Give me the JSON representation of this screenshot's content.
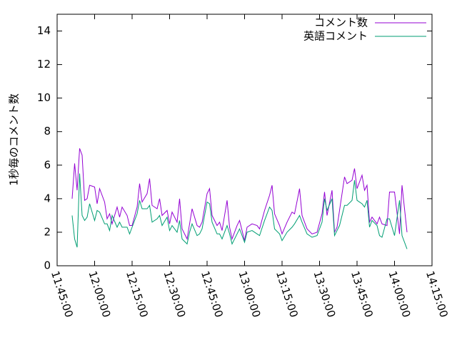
{
  "chart_data": {
    "type": "line",
    "y_label": "1秒毎のコメント数",
    "x": [
      "11:51:00",
      "11:52:00",
      "11:53:00",
      "11:54:00",
      "11:55:00",
      "11:56:00",
      "11:57:00",
      "11:58:00",
      "12:00:00",
      "12:01:00",
      "12:02:00",
      "12:04:00",
      "12:05:00",
      "12:06:00",
      "12:07:00",
      "12:09:00",
      "12:10:00",
      "12:11:00",
      "12:13:00",
      "12:14:00",
      "12:15:00",
      "12:17:00",
      "12:18:00",
      "12:19:00",
      "12:21:00",
      "12:22:00",
      "12:23:00",
      "12:25:00",
      "12:26:00",
      "12:27:00",
      "12:29:00",
      "12:30:00",
      "12:31:00",
      "12:33:00",
      "12:34:00",
      "12:35:00",
      "12:37:00",
      "12:38:00",
      "12:39:00",
      "12:41:00",
      "12:42:00",
      "12:43:00",
      "12:45:00",
      "12:46:00",
      "12:47:00",
      "12:49:00",
      "12:50:00",
      "12:51:00",
      "12:53:00",
      "12:54:00",
      "12:55:00",
      "12:57:00",
      "12:58:00",
      "13:00:00",
      "13:01:00",
      "13:03:00",
      "13:05:00",
      "13:06:00",
      "13:08:00",
      "13:10:00",
      "13:11:00",
      "13:12:00",
      "13:14:00",
      "13:15:00",
      "13:17:00",
      "13:19:00",
      "13:20:00",
      "13:22:00",
      "13:23:00",
      "13:25:00",
      "13:27:00",
      "13:29:00",
      "13:31:00",
      "13:32:00",
      "13:33:00",
      "13:35:00",
      "13:36:00",
      "13:37:00",
      "13:38:00",
      "13:40:00",
      "13:41:00",
      "13:43:00",
      "13:44:00",
      "13:45:00",
      "13:47:00",
      "13:48:00",
      "13:49:00",
      "13:50:00",
      "13:51:00",
      "13:53:00",
      "13:54:00",
      "13:55:00",
      "13:57:00",
      "13:58:00",
      "14:00:00",
      "14:02:00",
      "14:03:00",
      "14:05:00"
    ],
    "series": [
      {
        "name": "コメント数",
        "color": "#9400d3",
        "values": [
          4.0,
          6.1,
          4.5,
          7.0,
          6.6,
          3.9,
          4.0,
          4.8,
          4.7,
          3.7,
          4.6,
          3.8,
          2.8,
          3.1,
          2.5,
          3.5,
          2.9,
          3.5,
          3.0,
          2.4,
          2.4,
          3.5,
          4.9,
          3.8,
          4.3,
          5.2,
          3.6,
          3.4,
          4.0,
          3.0,
          3.3,
          2.5,
          3.2,
          2.6,
          4.0,
          2.2,
          1.6,
          2.5,
          3.4,
          2.4,
          2.3,
          2.6,
          4.3,
          4.6,
          3.0,
          2.4,
          2.6,
          2.1,
          3.9,
          2.3,
          1.6,
          2.4,
          2.7,
          1.5,
          2.3,
          2.5,
          2.4,
          2.2,
          3.3,
          4.2,
          4.8,
          3.1,
          2.4,
          1.9,
          2.6,
          3.2,
          3.1,
          4.6,
          3.0,
          2.2,
          1.9,
          2.0,
          3.1,
          4.4,
          3.0,
          4.5,
          2.0,
          2.3,
          3.3,
          5.3,
          4.9,
          5.1,
          5.8,
          4.6,
          5.4,
          4.5,
          4.8,
          2.6,
          2.9,
          2.5,
          2.9,
          2.5,
          2.4,
          4.4,
          4.4,
          1.9,
          4.8,
          2.0
        ]
      },
      {
        "name": "英語コメント",
        "color": "#009e73",
        "values": [
          3.0,
          1.6,
          1.1,
          5.5,
          3.0,
          2.7,
          2.9,
          3.7,
          2.7,
          3.3,
          3.2,
          2.5,
          2.5,
          2.1,
          3.0,
          2.3,
          2.6,
          2.3,
          2.3,
          1.9,
          2.3,
          3.1,
          3.9,
          3.4,
          3.4,
          3.6,
          2.6,
          2.8,
          3.0,
          2.4,
          2.9,
          2.1,
          2.4,
          2.0,
          2.7,
          1.6,
          1.3,
          2.0,
          2.5,
          1.8,
          1.9,
          2.2,
          3.8,
          3.7,
          2.6,
          1.9,
          1.9,
          1.6,
          2.4,
          1.9,
          1.3,
          1.9,
          2.2,
          1.4,
          2.0,
          2.1,
          1.9,
          1.8,
          2.7,
          3.5,
          3.3,
          2.2,
          1.9,
          1.5,
          2.0,
          2.3,
          2.5,
          3.0,
          2.6,
          1.9,
          1.7,
          1.8,
          2.6,
          4.0,
          3.3,
          4.0,
          1.8,
          2.1,
          2.4,
          3.6,
          3.6,
          3.9,
          5.1,
          3.9,
          3.7,
          3.5,
          3.9,
          2.3,
          2.7,
          2.4,
          1.8,
          1.7,
          2.8,
          2.8,
          1.8,
          3.9,
          1.8,
          1.0
        ]
      }
    ],
    "xlim": [
      "11:45:00",
      "14:15:00"
    ],
    "xticks": [
      "11:45:00",
      "12:00:00",
      "12:15:00",
      "12:30:00",
      "12:45:00",
      "13:00:00",
      "13:15:00",
      "13:30:00",
      "13:45:00",
      "14:00:00",
      "14:15:00"
    ],
    "ylim": [
      0,
      15
    ],
    "yticks": [
      0,
      2,
      4,
      6,
      8,
      10,
      12,
      14
    ],
    "grid": false,
    "legend": "top-right"
  }
}
